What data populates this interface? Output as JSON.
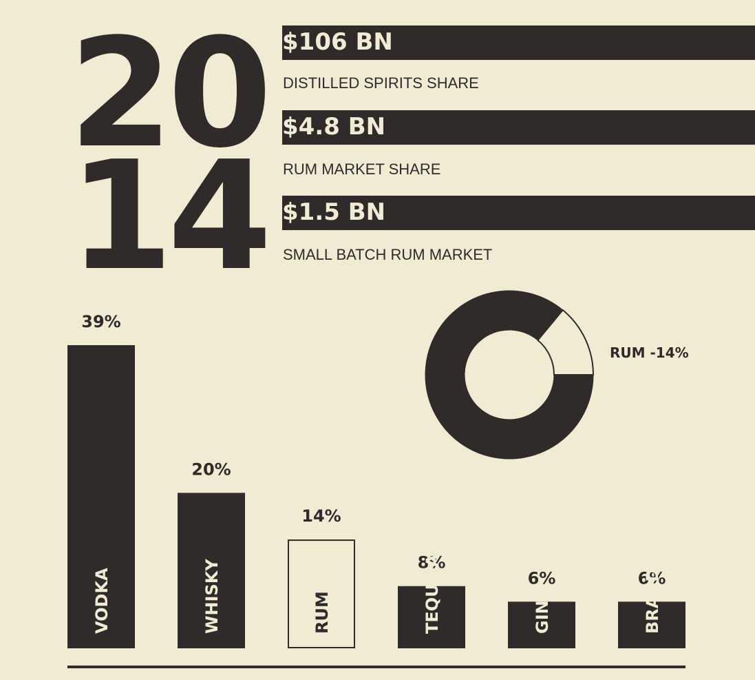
{
  "year": {
    "top": "20",
    "bottom": "14"
  },
  "stats": [
    {
      "value": "$106 BN",
      "label": "DISTILLED SPIRITS SHARE"
    },
    {
      "value": "$4.8 BN",
      "label": "RUM MARKET SHARE"
    },
    {
      "value": "$1.5 BN",
      "label": "SMALL BATCH RUM MARKET"
    }
  ],
  "chart_data": [
    {
      "type": "bar",
      "categories": [
        "VODKA",
        "WHISKY",
        "RUM",
        "TEQUILA",
        "GIN",
        "BRANDY"
      ],
      "values": [
        39,
        20,
        14,
        8,
        6,
        6
      ],
      "data_labels": [
        "39%",
        "20%",
        "14%",
        "8%",
        "6%",
        "6%"
      ],
      "highlight": "RUM"
    },
    {
      "type": "pie",
      "variant": "donut",
      "slices": [
        {
          "label": "RUM -14%",
          "value": 14
        },
        {
          "label": "",
          "value": 86
        }
      ]
    }
  ],
  "colors": {
    "background": "#f0ecd3",
    "ink": "#2e2b2a"
  }
}
